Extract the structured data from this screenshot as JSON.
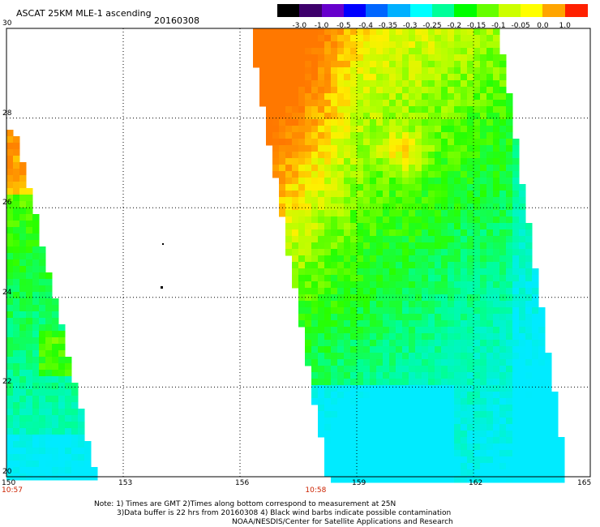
{
  "header": {
    "title": "ASCAT 25KM MLE-1 ascending",
    "date": "20160308"
  },
  "colorbar": {
    "labels": [
      "-3.0",
      "-1.0",
      "-0.5",
      "-0.4",
      "-0.35",
      "-0.3",
      "-0.25",
      "-0.2",
      "-0.15",
      "-0.1",
      "-0.05",
      "0.0",
      "1.0"
    ],
    "colors": [
      "#000000",
      "#3d006b",
      "#6600cc",
      "#0000ff",
      "#0066ff",
      "#00b0ff",
      "#00ffff",
      "#00ff99",
      "#00ff00",
      "#66ff00",
      "#ccff00",
      "#ffff00",
      "#ffa500",
      "#ff2000"
    ]
  },
  "map": {
    "lat_labels": [
      "30",
      "28",
      "26",
      "24",
      "22",
      "20"
    ],
    "lon_labels": [
      "150",
      "153",
      "156",
      "159",
      "162",
      "165"
    ],
    "lat_range": [
      20,
      30
    ],
    "lon_range": [
      150,
      165
    ],
    "time_labels": [
      {
        "text": "10:57",
        "lon": 150
      },
      {
        "text": "10:58",
        "lon": 157.8
      }
    ]
  },
  "notes": {
    "line1": "Note: 1) Times are GMT 2)Times along bottom correspond to measurement at 25N",
    "line2": "3)Data buffer is 22 hrs from 20160308 4) Black wind barbs indicate possible contamination",
    "line3": "NOAA/NESDIS/Center for Satellite Applications and Research"
  }
}
